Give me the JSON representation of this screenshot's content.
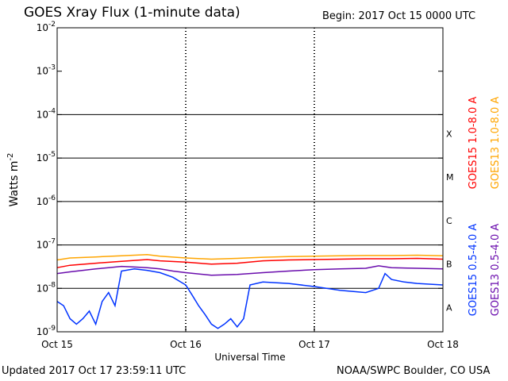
{
  "header": {
    "title": "GOES Xray Flux (1-minute data)",
    "begin": "Begin:  2017 Oct 15 0000 UTC"
  },
  "footer": {
    "updated": "Updated 2017 Oct 17 23:59:11 UTC",
    "credit": "NOAA/SWPC Boulder, CO USA"
  },
  "colors": {
    "goes15_long": "#ff0000",
    "goes13_long": "#ffa500",
    "goes15_short": "#0033ff",
    "goes13_short": "#6a0dad",
    "class_lines": "#000000"
  },
  "chart_data": {
    "type": "line",
    "title": "GOES Xray Flux (1-minute data)",
    "xlabel": "Universal Time",
    "ylabel": "Watts m",
    "ylabel_superscript": "-2",
    "y_scale": "log",
    "ylim": [
      1e-09,
      0.01
    ],
    "xlim": [
      "2017-10-15",
      "2017-10-18"
    ],
    "x_ticks": [
      "Oct 15",
      "Oct 16",
      "Oct 17",
      "Oct 18"
    ],
    "y_ticks": [
      {
        "mantissa": "10",
        "exp": "-2",
        "value": 0.01
      },
      {
        "mantissa": "10",
        "exp": "-3",
        "value": 0.001
      },
      {
        "mantissa": "10",
        "exp": "-4",
        "value": 0.0001
      },
      {
        "mantissa": "10",
        "exp": "-5",
        "value": 1e-05
      },
      {
        "mantissa": "10",
        "exp": "-6",
        "value": 1e-06
      },
      {
        "mantissa": "10",
        "exp": "-7",
        "value": 1e-07
      },
      {
        "mantissa": "10",
        "exp": "-8",
        "value": 1e-08
      },
      {
        "mantissa": "10",
        "exp": "-9",
        "value": 1e-09
      }
    ],
    "flare_classes": [
      {
        "label": "X",
        "value": 0.0001
      },
      {
        "label": "M",
        "value": 1e-05
      },
      {
        "label": "C",
        "value": 1e-06
      },
      {
        "label": "B",
        "value": 1e-07
      },
      {
        "label": "A",
        "value": 1e-08
      }
    ],
    "legend_placement": "right, vertical",
    "series": [
      {
        "name": "GOES15 1.0-8.0 A",
        "color": "#ff0000",
        "x_days": [
          0,
          0.1,
          0.3,
          0.5,
          0.7,
          0.8,
          1.0,
          1.2,
          1.4,
          1.6,
          1.8,
          2.0,
          2.2,
          2.4,
          2.6,
          2.8,
          3.0
        ],
        "values": [
          3e-08,
          3.4e-08,
          3.8e-08,
          4.2e-08,
          4.6e-08,
          4.3e-08,
          4e-08,
          3.6e-08,
          3.8e-08,
          4.3e-08,
          4.5e-08,
          4.6e-08,
          4.7e-08,
          4.8e-08,
          4.8e-08,
          4.9e-08,
          4.7e-08
        ]
      },
      {
        "name": "GOES13 1.0-8.0 A",
        "color": "#ffa500",
        "x_days": [
          0,
          0.1,
          0.3,
          0.5,
          0.7,
          0.8,
          1.0,
          1.2,
          1.4,
          1.6,
          1.8,
          2.0,
          2.2,
          2.4,
          2.6,
          2.8,
          3.0
        ],
        "values": [
          4.5e-08,
          5e-08,
          5.3e-08,
          5.6e-08,
          6e-08,
          5.5e-08,
          5e-08,
          4.7e-08,
          4.9e-08,
          5.2e-08,
          5.4e-08,
          5.5e-08,
          5.6e-08,
          5.7e-08,
          5.7e-08,
          5.8e-08,
          5.6e-08
        ]
      },
      {
        "name": "GOES15 0.5-4.0 A",
        "color": "#0033ff",
        "x_days": [
          0,
          0.05,
          0.1,
          0.15,
          0.2,
          0.25,
          0.3,
          0.35,
          0.4,
          0.45,
          0.5,
          0.6,
          0.7,
          0.8,
          0.9,
          1.0,
          1.05,
          1.1,
          1.15,
          1.2,
          1.25,
          1.3,
          1.35,
          1.4,
          1.45,
          1.5,
          1.6,
          1.8,
          2.0,
          2.2,
          2.4,
          2.5,
          2.55,
          2.6,
          2.7,
          2.8,
          3.0
        ],
        "values": [
          5e-09,
          4e-09,
          2e-09,
          1.5e-09,
          2e-09,
          3e-09,
          1.5e-09,
          5e-09,
          8e-09,
          4e-09,
          2.5e-08,
          2.8e-08,
          2.6e-08,
          2.3e-08,
          1.8e-08,
          1.2e-08,
          7e-09,
          4e-09,
          2.5e-09,
          1.5e-09,
          1.2e-09,
          1.5e-09,
          2e-09,
          1.3e-09,
          2e-09,
          1.2e-08,
          1.4e-08,
          1.3e-08,
          1.1e-08,
          9e-09,
          8e-09,
          1e-08,
          2.2e-08,
          1.6e-08,
          1.4e-08,
          1.3e-08,
          1.2e-08
        ]
      },
      {
        "name": "GOES13 0.5-4.0 A",
        "color": "#6a0dad",
        "x_days": [
          0,
          0.1,
          0.2,
          0.3,
          0.4,
          0.5,
          0.6,
          0.7,
          0.8,
          0.9,
          1.0,
          1.2,
          1.4,
          1.6,
          1.8,
          2.0,
          2.2,
          2.4,
          2.5,
          2.6,
          2.8,
          3.0
        ],
        "values": [
          2.2e-08,
          2.4e-08,
          2.6e-08,
          2.8e-08,
          3e-08,
          3.2e-08,
          3.1e-08,
          3e-08,
          2.8e-08,
          2.5e-08,
          2.3e-08,
          2e-08,
          2.1e-08,
          2.3e-08,
          2.5e-08,
          2.7e-08,
          2.8e-08,
          2.9e-08,
          3.3e-08,
          3e-08,
          2.9e-08,
          2.8e-08
        ]
      }
    ]
  }
}
